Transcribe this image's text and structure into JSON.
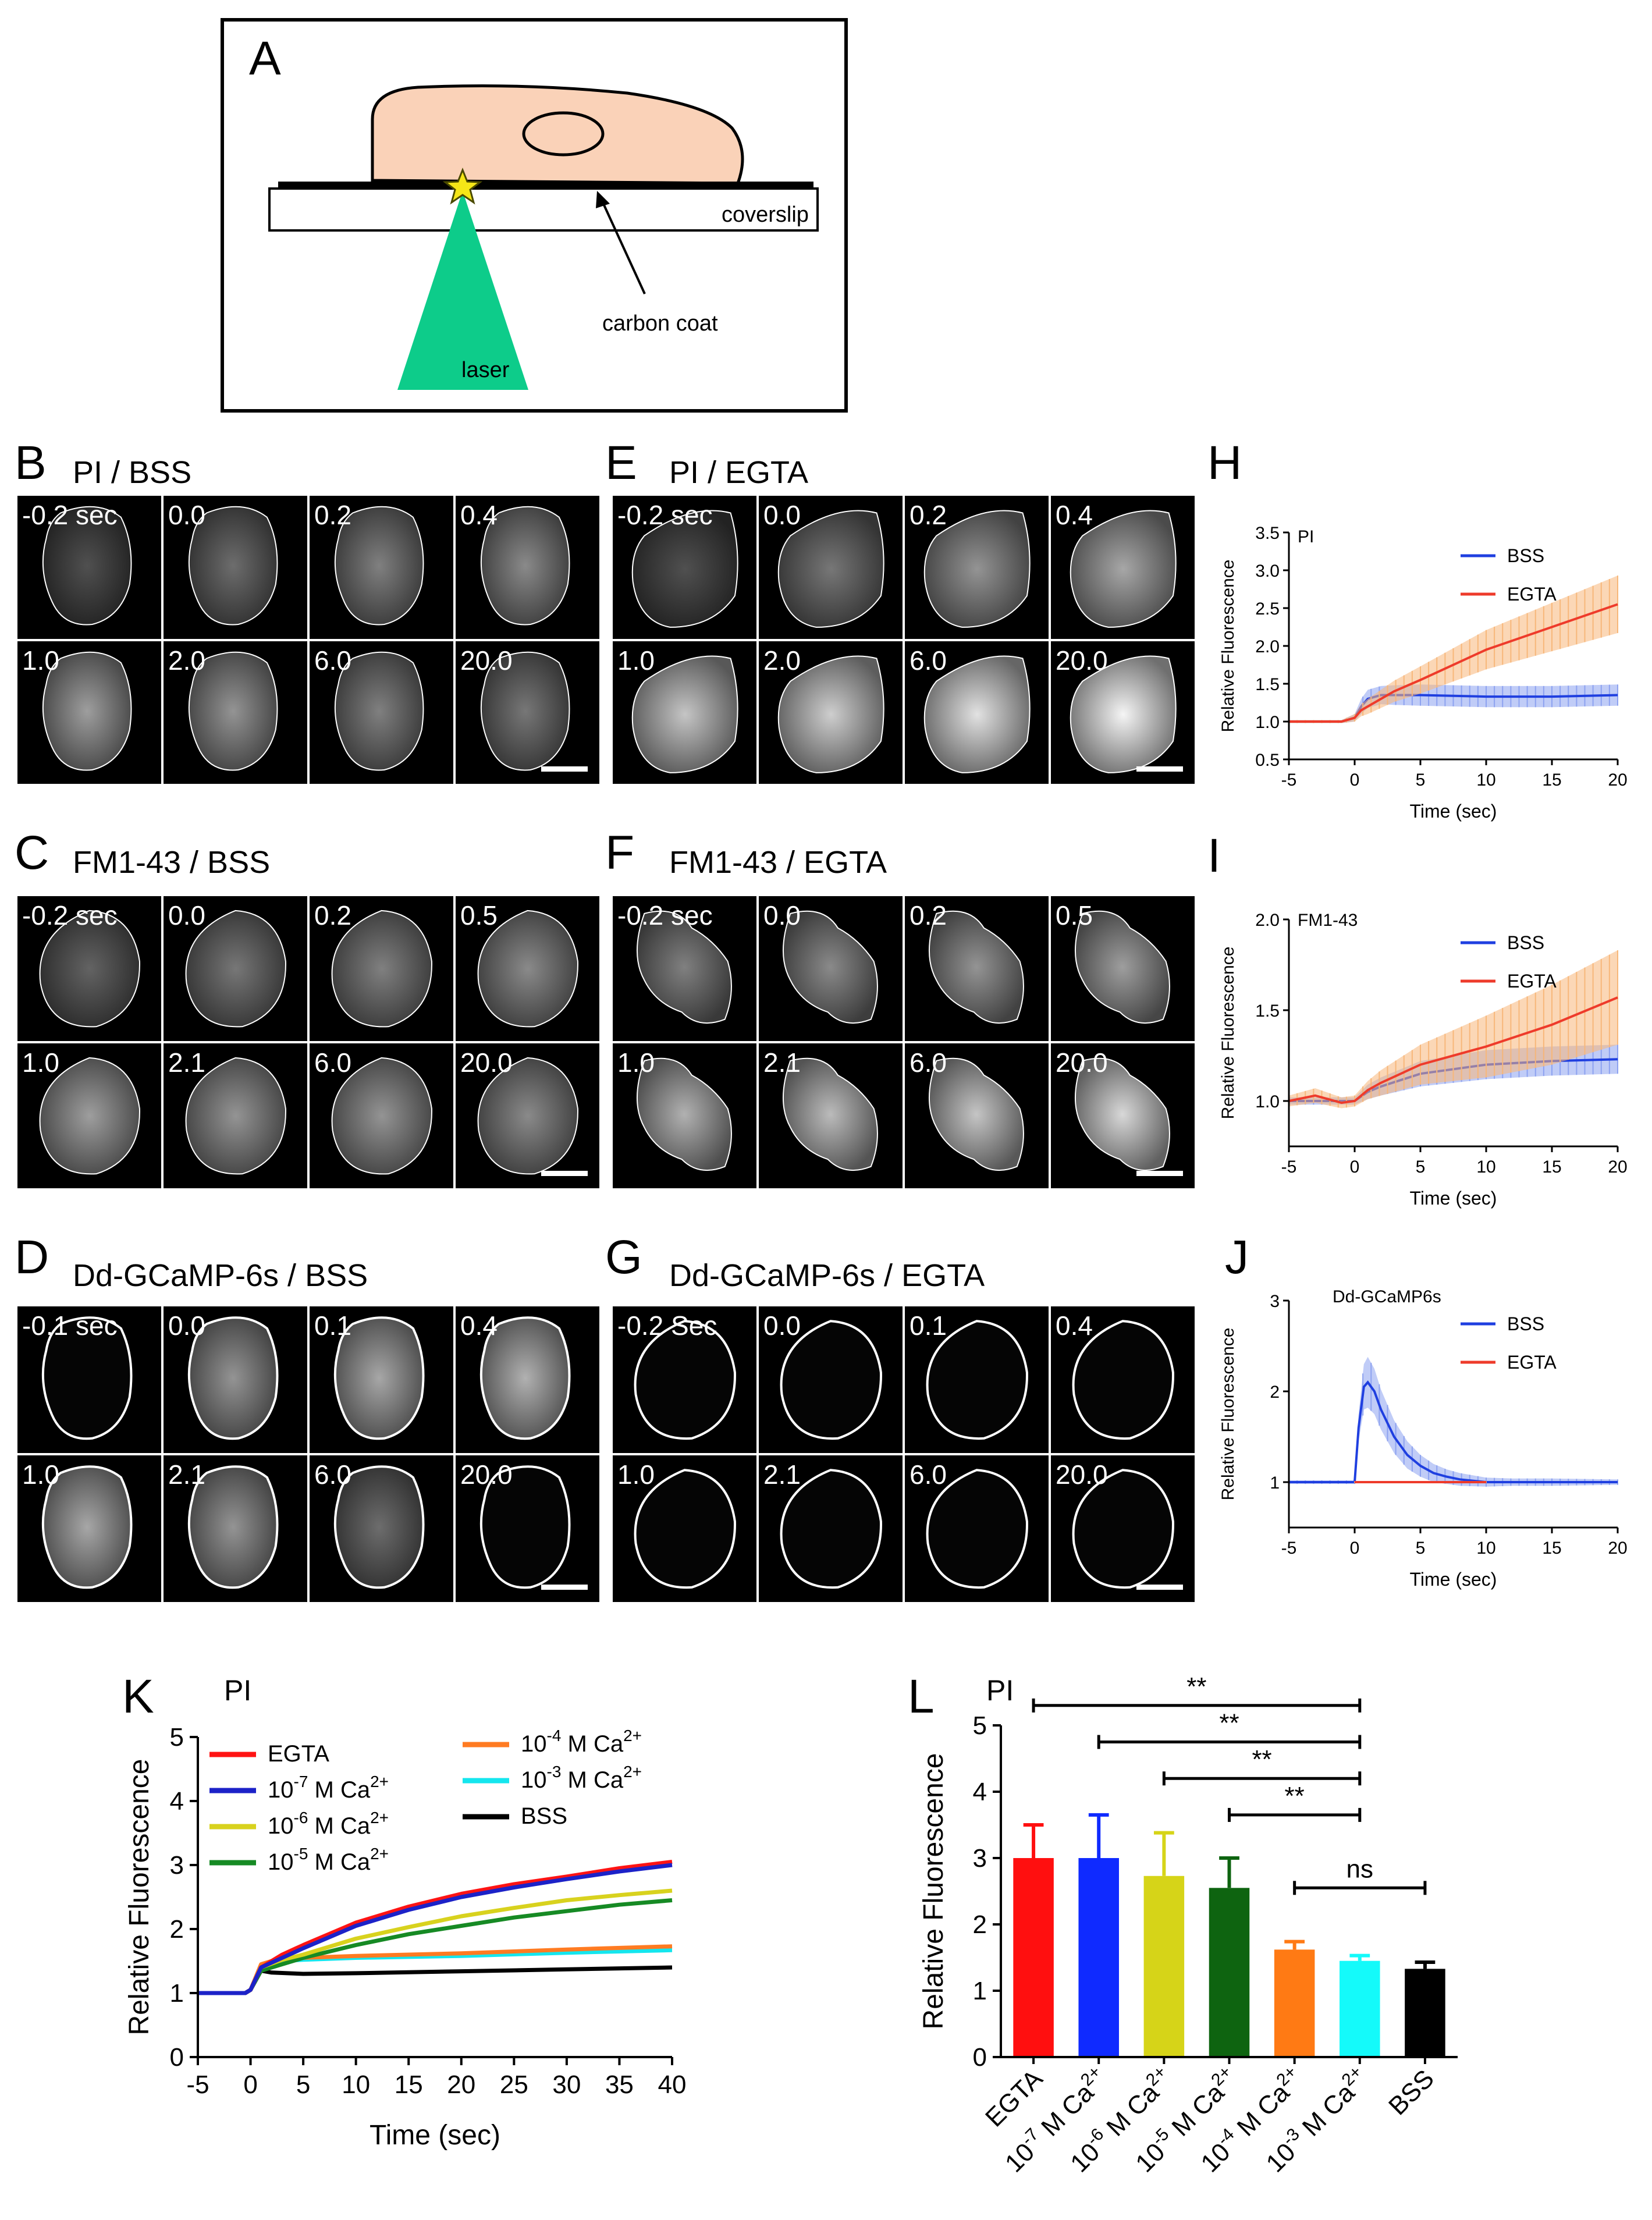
{
  "panelA": {
    "letter": "A",
    "coverslip_label": "coverslip",
    "carbon_label": "carbon coat",
    "laser_label": "laser"
  },
  "grids": {
    "B": {
      "letter": "B",
      "title": "PI / BSS",
      "times": [
        "-0.2 sec",
        "0.0",
        "0.2",
        "0.4",
        "1.0",
        "2.0",
        "6.0",
        "20.0"
      ],
      "intensity": [
        0.1,
        0.25,
        0.35,
        0.4,
        0.5,
        0.45,
        0.35,
        0.3
      ]
    },
    "E": {
      "letter": "E",
      "title": "PI / EGTA",
      "times": [
        "-0.2 sec",
        "0.0",
        "0.2",
        "0.4",
        "1.0",
        "2.0",
        "6.0",
        "20.0"
      ],
      "intensity": [
        0.1,
        0.3,
        0.45,
        0.55,
        0.7,
        0.75,
        0.85,
        0.95
      ]
    },
    "C": {
      "letter": "C",
      "title": "FM1-43 / BSS",
      "times": [
        "-0.2 sec",
        "0.0",
        "0.2",
        "0.5",
        "1.0",
        "2.1",
        "6.0",
        "20.0"
      ],
      "intensity": [
        0.2,
        0.3,
        0.35,
        0.4,
        0.5,
        0.45,
        0.45,
        0.4
      ]
    },
    "F": {
      "letter": "F",
      "title": "FM1-43 / EGTA",
      "times": [
        "-0.2 sec",
        "0.0",
        "0.2",
        "0.5",
        "1.0",
        "2.1",
        "6.0",
        "20.0"
      ],
      "intensity": [
        0.35,
        0.4,
        0.45,
        0.5,
        0.6,
        0.65,
        0.7,
        0.8
      ]
    },
    "D": {
      "letter": "D",
      "title": "Dd-GCaMP-6s / BSS",
      "times": [
        "-0.1 sec",
        "0.0",
        "0.1",
        "0.4",
        "1.0",
        "2.1",
        "6.0",
        "20.0"
      ],
      "intensity": [
        0.0,
        0.45,
        0.55,
        0.6,
        0.55,
        0.45,
        0.25,
        0.0
      ]
    },
    "G": {
      "letter": "G",
      "title": "Dd-GCaMP-6s / EGTA",
      "times": [
        "-0.2 Sec",
        "0.0",
        "0.1",
        "0.4",
        "1.0",
        "2.1",
        "6.0",
        "20.0"
      ],
      "intensity": [
        0.02,
        0.03,
        0.02,
        0.02,
        0.02,
        0.03,
        0.02,
        0.02
      ]
    }
  },
  "small_charts": {
    "H": {
      "letter": "H",
      "inner": "PI"
    },
    "I": {
      "letter": "I",
      "inner": "FM1-43"
    },
    "J": {
      "letter": "J",
      "inner": "Dd-GCaMP6s"
    }
  },
  "big_K": {
    "letter": "K",
    "title": "PI"
  },
  "big_L": {
    "letter": "L",
    "title": "PI"
  },
  "chart_data": [
    {
      "id": "H",
      "type": "line",
      "title": "PI",
      "xlabel": "Time (sec)",
      "ylabel": "Relative Fluorescence",
      "xlim": [
        -5,
        20
      ],
      "ylim": [
        0.5,
        3.5
      ],
      "xticks": [
        -5,
        0,
        5,
        10,
        15,
        20
      ],
      "yticks": [
        0.5,
        1.0,
        1.5,
        2.0,
        2.5,
        3.0,
        3.5
      ],
      "ytick_labels": [
        "0.5",
        "1.0",
        "1.5",
        "2.0",
        "2.5",
        "3.0",
        "3.5"
      ],
      "legend": "top-right",
      "series": [
        {
          "name": "BSS",
          "color": "#1f3fe0",
          "band": "#8da2f0",
          "x": [
            -5,
            -1,
            0,
            0.5,
            1,
            2,
            3,
            5,
            10,
            15,
            20
          ],
          "y": [
            1.0,
            1.0,
            1.05,
            1.2,
            1.3,
            1.35,
            1.35,
            1.35,
            1.33,
            1.33,
            1.35
          ],
          "err": [
            0.02,
            0.02,
            0.05,
            0.1,
            0.12,
            0.12,
            0.13,
            0.14,
            0.14,
            0.14,
            0.14
          ]
        },
        {
          "name": "EGTA",
          "color": "#ee3b2b",
          "band": "#f7b77a",
          "x": [
            -5,
            -1,
            0,
            0.5,
            1,
            2,
            3,
            5,
            10,
            15,
            20
          ],
          "y": [
            1.0,
            1.0,
            1.05,
            1.15,
            1.2,
            1.3,
            1.4,
            1.55,
            1.95,
            2.25,
            2.55
          ],
          "err": [
            0.02,
            0.02,
            0.05,
            0.08,
            0.1,
            0.12,
            0.14,
            0.18,
            0.26,
            0.32,
            0.38
          ]
        }
      ]
    },
    {
      "id": "I",
      "type": "line",
      "title": "FM1-43",
      "xlabel": "Time (sec)",
      "ylabel": "Relative Fluorescence",
      "xlim": [
        -5,
        20
      ],
      "ylim": [
        0.75,
        2.0
      ],
      "xticks": [
        -5,
        0,
        5,
        10,
        15,
        20
      ],
      "yticks": [
        1.0,
        1.5,
        2.0
      ],
      "ytick_labels": [
        "1.0",
        "1.5",
        "2.0"
      ],
      "legend": "top-right",
      "series": [
        {
          "name": "BSS",
          "color": "#1f3fe0",
          "band": "#8da2f0",
          "x": [
            -5,
            -1,
            0,
            1,
            2,
            5,
            10,
            15,
            20
          ],
          "y": [
            1.0,
            1.0,
            1.0,
            1.05,
            1.08,
            1.15,
            1.2,
            1.22,
            1.23
          ],
          "err": [
            0.02,
            0.02,
            0.02,
            0.04,
            0.05,
            0.07,
            0.08,
            0.08,
            0.08
          ]
        },
        {
          "name": "EGTA",
          "color": "#ee3b2b",
          "band": "#f7b77a",
          "x": [
            -5,
            -3,
            -1,
            0,
            1,
            2,
            5,
            10,
            15,
            20
          ],
          "y": [
            1.0,
            1.03,
            0.99,
            1.0,
            1.06,
            1.1,
            1.2,
            1.3,
            1.42,
            1.57
          ],
          "err": [
            0.03,
            0.04,
            0.03,
            0.03,
            0.05,
            0.07,
            0.11,
            0.17,
            0.22,
            0.26
          ]
        }
      ]
    },
    {
      "id": "J",
      "type": "line",
      "title": "Dd-GCaMP6s",
      "xlabel": "Time (sec)",
      "ylabel": "Relative Fluorescence",
      "xlim": [
        -5,
        20
      ],
      "ylim": [
        0.5,
        3.0
      ],
      "xticks": [
        -5,
        0,
        5,
        10,
        15,
        20
      ],
      "yticks": [
        1,
        2,
        3
      ],
      "ytick_labels": [
        "1",
        "2",
        "3"
      ],
      "legend": "top-right",
      "series": [
        {
          "name": "BSS",
          "color": "#1f3fe0",
          "band": "#8da2f0",
          "x": [
            -5,
            -1,
            0,
            0.3,
            0.7,
            1,
            1.5,
            2,
            3,
            4,
            5,
            6,
            7,
            8,
            10,
            12,
            15,
            20
          ],
          "y": [
            1.0,
            1.0,
            1.0,
            1.6,
            2.05,
            2.1,
            2.0,
            1.8,
            1.5,
            1.3,
            1.18,
            1.1,
            1.06,
            1.03,
            1.0,
            1.0,
            1.0,
            1.0
          ],
          "err": [
            0.02,
            0.02,
            0.02,
            0.15,
            0.25,
            0.28,
            0.25,
            0.22,
            0.18,
            0.15,
            0.12,
            0.1,
            0.08,
            0.07,
            0.05,
            0.04,
            0.04,
            0.03
          ]
        },
        {
          "name": "EGTA",
          "color": "#ee3b2b",
          "band": "#f7b77a",
          "x": [
            0,
            10
          ],
          "y": [
            1.0,
            1.0
          ],
          "err": [
            0.01,
            0.01
          ]
        }
      ]
    },
    {
      "id": "K",
      "type": "line",
      "title": "PI",
      "xlabel": "Time (sec)",
      "ylabel": "Relative Fluorescence",
      "xlim": [
        -5,
        40
      ],
      "ylim": [
        0,
        5
      ],
      "xticks": [
        -5,
        0,
        5,
        10,
        15,
        20,
        25,
        30,
        35,
        40
      ],
      "yticks": [
        0,
        1,
        2,
        3,
        4,
        5
      ],
      "legend_col1": [
        "EGTA",
        "10-7 M Ca2+",
        "10-6 M Ca2+",
        "10-5 M Ca2+"
      ],
      "legend_col2": [
        "10-4 M Ca2+",
        "10-3 M Ca2+",
        "BSS"
      ],
      "series": [
        {
          "name": "EGTA",
          "color": "#ff1414",
          "x": [
            -5,
            -0.5,
            0,
            1,
            3,
            5,
            10,
            15,
            20,
            25,
            30,
            35,
            40
          ],
          "y": [
            1.0,
            1.0,
            1.05,
            1.4,
            1.6,
            1.75,
            2.1,
            2.35,
            2.55,
            2.7,
            2.82,
            2.95,
            3.05
          ]
        },
        {
          "name": "10-7 M Ca2+",
          "color": "#1c22c8",
          "x": [
            -5,
            -0.5,
            0,
            1,
            3,
            5,
            10,
            15,
            20,
            25,
            30,
            35,
            40
          ],
          "y": [
            1.0,
            1.0,
            1.05,
            1.4,
            1.55,
            1.7,
            2.05,
            2.3,
            2.5,
            2.65,
            2.78,
            2.9,
            3.0
          ]
        },
        {
          "name": "10-6 M Ca2+",
          "color": "#d8d21e",
          "x": [
            -5,
            -0.5,
            0,
            1,
            3,
            5,
            10,
            15,
            20,
            25,
            30,
            35,
            40
          ],
          "y": [
            1.0,
            1.0,
            1.05,
            1.4,
            1.52,
            1.6,
            1.85,
            2.03,
            2.2,
            2.33,
            2.45,
            2.53,
            2.6
          ]
        },
        {
          "name": "10-5 M Ca2+",
          "color": "#168a24",
          "x": [
            -5,
            -0.5,
            0,
            1,
            3,
            5,
            10,
            15,
            20,
            25,
            30,
            35,
            40
          ],
          "y": [
            1.0,
            1.0,
            1.05,
            1.35,
            1.45,
            1.55,
            1.75,
            1.92,
            2.05,
            2.18,
            2.28,
            2.38,
            2.45
          ]
        },
        {
          "name": "10-4 M Ca2+",
          "color": "#ff7b22",
          "x": [
            -5,
            -0.5,
            0,
            1,
            3,
            5,
            10,
            20,
            30,
            40
          ],
          "y": [
            1.0,
            1.0,
            1.05,
            1.45,
            1.55,
            1.55,
            1.58,
            1.62,
            1.68,
            1.73
          ]
        },
        {
          "name": "10-3 M Ca2+",
          "color": "#14e6ee",
          "x": [
            -5,
            -0.5,
            0,
            1,
            3,
            5,
            10,
            20,
            30,
            40
          ],
          "y": [
            1.0,
            1.0,
            1.05,
            1.4,
            1.5,
            1.52,
            1.55,
            1.58,
            1.63,
            1.67
          ]
        },
        {
          "name": "BSS",
          "color": "#000000",
          "x": [
            -5,
            -0.5,
            0,
            1,
            2,
            5,
            10,
            20,
            30,
            40
          ],
          "y": [
            1.0,
            1.0,
            1.05,
            1.35,
            1.32,
            1.3,
            1.31,
            1.34,
            1.37,
            1.4
          ]
        }
      ]
    },
    {
      "id": "L",
      "type": "bar",
      "title": "PI",
      "ylabel": "Relative Fluorescence",
      "ylim": [
        0,
        5
      ],
      "yticks": [
        0,
        1,
        2,
        3,
        4,
        5
      ],
      "categories": [
        "EGTA",
        "10-7 M Ca2+",
        "10-6 M Ca2+",
        "10-5 M Ca2+",
        "10-4 M Ca2+",
        "10-3 M Ca2+",
        "BSS"
      ],
      "values": [
        3.0,
        3.0,
        2.73,
        2.55,
        1.62,
        1.45,
        1.33
      ],
      "errors": [
        0.5,
        0.65,
        0.65,
        0.45,
        0.12,
        0.08,
        0.1
      ],
      "colors": [
        "#ff0f0f",
        "#0f2aff",
        "#d6d418",
        "#0e6410",
        "#ff7a14",
        "#14fafa",
        "#000000"
      ],
      "significance": [
        {
          "from": 0,
          "to": 5,
          "label": "**",
          "level": 5.3
        },
        {
          "from": 1,
          "to": 5,
          "label": "**",
          "level": 4.75
        },
        {
          "from": 2,
          "to": 5,
          "label": "**",
          "level": 4.2
        },
        {
          "from": 3,
          "to": 5,
          "label": "**",
          "level": 3.65
        },
        {
          "from": 4,
          "to": 6,
          "label": "ns",
          "level": 2.55
        }
      ]
    }
  ]
}
